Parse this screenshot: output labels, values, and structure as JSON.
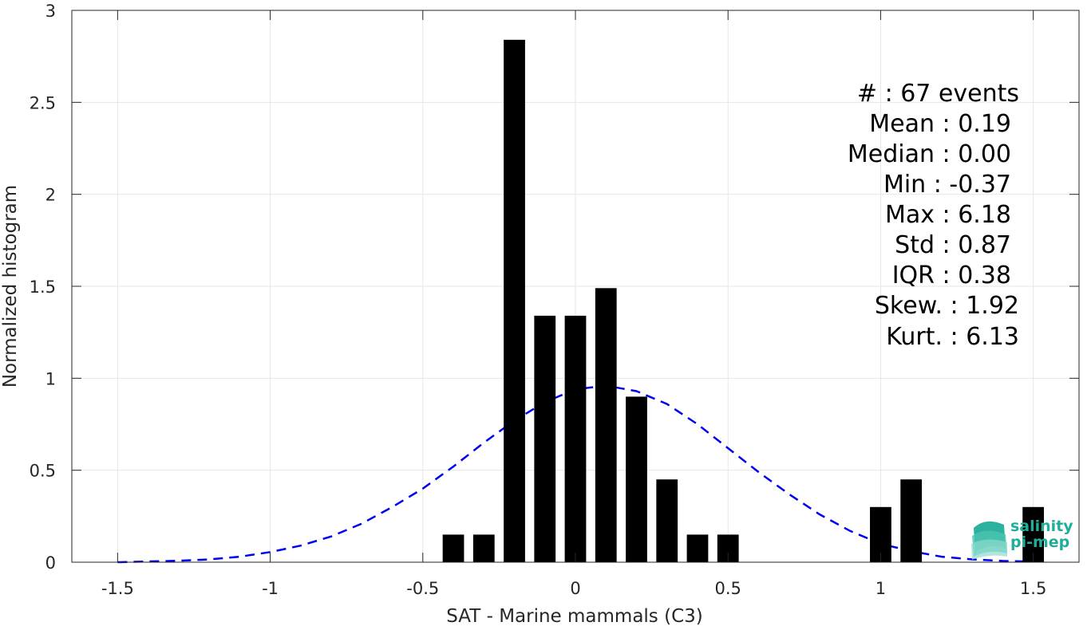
{
  "chart_data": {
    "type": "bar",
    "xlabel": "SAT - Marine mammals (C3)",
    "ylabel": "Normalized histogram",
    "xlim": [
      -1.65,
      1.65
    ],
    "ylim": [
      0,
      3
    ],
    "xticks": [
      -1.5,
      -1,
      -0.5,
      0,
      0.5,
      1,
      1.5
    ],
    "xtick_labels": [
      "-1.5",
      "-1",
      "-0.5",
      "0",
      "0.5",
      "1",
      "1.5"
    ],
    "yticks": [
      0,
      0.5,
      1,
      1.5,
      2,
      2.5,
      3
    ],
    "ytick_labels": [
      "0",
      "0.5",
      "1",
      "1.5",
      "2",
      "2.5",
      "3"
    ],
    "grid": true,
    "bar_color": "#000000",
    "bar_width": 0.07,
    "bars": [
      {
        "x": -0.4,
        "y": 0.15
      },
      {
        "x": -0.3,
        "y": 0.15
      },
      {
        "x": -0.2,
        "y": 2.84
      },
      {
        "x": -0.1,
        "y": 1.34
      },
      {
        "x": 0.0,
        "y": 1.34
      },
      {
        "x": 0.1,
        "y": 1.49
      },
      {
        "x": 0.2,
        "y": 0.9
      },
      {
        "x": 0.3,
        "y": 0.45
      },
      {
        "x": 0.4,
        "y": 0.15
      },
      {
        "x": 0.5,
        "y": 0.15
      },
      {
        "x": 1.0,
        "y": 0.3
      },
      {
        "x": 1.1,
        "y": 0.45
      },
      {
        "x": 1.5,
        "y": 0.3
      }
    ],
    "fit_curve": {
      "style": "dashed",
      "color": "#0000ee",
      "x": [
        -1.5,
        -1.4,
        -1.3,
        -1.2,
        -1.1,
        -1.0,
        -0.9,
        -0.8,
        -0.7,
        -0.6,
        -0.5,
        -0.4,
        -0.3,
        -0.2,
        -0.1,
        0.0,
        0.1,
        0.2,
        0.3,
        0.4,
        0.5,
        0.6,
        0.7,
        0.8,
        0.9,
        1.0,
        1.1,
        1.2,
        1.3,
        1.4,
        1.5
      ],
      "y": [
        0.0,
        0.004,
        0.008,
        0.015,
        0.03,
        0.055,
        0.09,
        0.14,
        0.21,
        0.3,
        0.4,
        0.52,
        0.65,
        0.77,
        0.87,
        0.94,
        0.96,
        0.93,
        0.86,
        0.75,
        0.62,
        0.49,
        0.37,
        0.26,
        0.17,
        0.1,
        0.06,
        0.03,
        0.015,
        0.007,
        0.003
      ]
    },
    "annotations": [
      "#  : 67 events",
      "Mean : 0.19",
      "Median : 0.00",
      "Min : -0.37",
      "Max : 6.18",
      "Std : 0.87",
      "IQR : 0.38",
      "Skew. : 1.92",
      "Kurt. : 6.13"
    ]
  },
  "logo": {
    "line1": "salinity",
    "line2": "pi-mep",
    "color": "#1fae9a"
  }
}
